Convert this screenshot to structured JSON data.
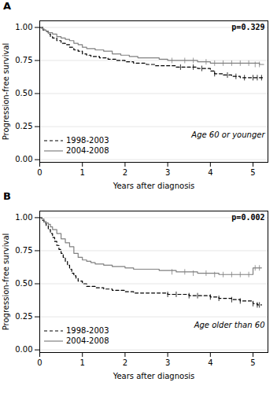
{
  "chart_data": [
    {
      "type": "line",
      "title": "A",
      "annotations": [
        "p=0.329",
        "Age 60 or younger"
      ],
      "xlabel": "Years after diagnosis",
      "ylabel": "Progression-free survival",
      "xlim": [
        0,
        5.35
      ],
      "ylim": [
        -0.02,
        1.05
      ],
      "xticks": [
        0,
        1,
        2,
        3,
        4,
        5
      ],
      "yticks": [
        {
          "value": 0.0,
          "label": "0.00"
        },
        {
          "value": 0.25,
          "label": "0.25"
        },
        {
          "value": 0.5,
          "label": "0.50"
        },
        {
          "value": 0.75,
          "label": "0.75"
        },
        {
          "value": 1.0,
          "label": "1.00"
        }
      ],
      "grid": true,
      "legend": "lower left",
      "series": [
        {
          "name": "1998-2003",
          "color": "#000000",
          "line_style": "dashed",
          "x": [
            0,
            0.08,
            0.15,
            0.2,
            0.25,
            0.3,
            0.4,
            0.5,
            0.6,
            0.7,
            0.8,
            0.9,
            1.0,
            1.1,
            1.2,
            1.4,
            1.6,
            1.8,
            2.0,
            2.2,
            2.5,
            2.7,
            3.0,
            3.2,
            3.5,
            3.7,
            4.0,
            4.1,
            4.3,
            4.5,
            4.7,
            5.0,
            5.15,
            5.25
          ],
          "values": [
            1.0,
            0.98,
            0.97,
            0.95,
            0.93,
            0.92,
            0.9,
            0.88,
            0.87,
            0.85,
            0.83,
            0.82,
            0.8,
            0.79,
            0.78,
            0.77,
            0.76,
            0.75,
            0.74,
            0.73,
            0.72,
            0.71,
            0.71,
            0.7,
            0.7,
            0.69,
            0.67,
            0.65,
            0.64,
            0.63,
            0.62,
            0.62,
            0.62,
            0.62
          ],
          "censored_x": [
            3.3,
            3.6,
            3.8,
            4.1,
            4.4,
            4.6,
            4.8,
            5.0,
            5.1,
            5.2
          ],
          "censored_values": [
            0.7,
            0.7,
            0.69,
            0.65,
            0.64,
            0.63,
            0.62,
            0.62,
            0.62,
            0.62
          ]
        },
        {
          "name": "2004-2008",
          "color": "#808080",
          "line_style": "solid",
          "x": [
            0,
            0.05,
            0.1,
            0.15,
            0.2,
            0.3,
            0.4,
            0.5,
            0.6,
            0.7,
            0.8,
            0.9,
            1.0,
            1.1,
            1.3,
            1.5,
            1.7,
            1.9,
            2.1,
            2.3,
            2.5,
            2.8,
            3.0,
            3.2,
            3.5,
            3.7,
            4.0,
            4.5,
            5.0,
            5.15,
            5.25
          ],
          "values": [
            1.0,
            0.99,
            0.98,
            0.97,
            0.96,
            0.95,
            0.93,
            0.92,
            0.91,
            0.9,
            0.88,
            0.87,
            0.85,
            0.84,
            0.83,
            0.82,
            0.8,
            0.79,
            0.78,
            0.77,
            0.77,
            0.76,
            0.75,
            0.75,
            0.75,
            0.74,
            0.73,
            0.73,
            0.73,
            0.72,
            0.72
          ],
          "censored_x": [
            3.1,
            3.4,
            3.6,
            3.9,
            4.1,
            4.3,
            4.5,
            4.7,
            4.9,
            5.05,
            5.15
          ],
          "censored_values": [
            0.75,
            0.75,
            0.75,
            0.74,
            0.73,
            0.73,
            0.73,
            0.73,
            0.73,
            0.72,
            0.72
          ]
        }
      ]
    },
    {
      "type": "line",
      "title": "B",
      "annotations": [
        "p=0.002",
        "Age older than 60"
      ],
      "xlabel": "Years after diagnosis",
      "ylabel": "Progression-free survival",
      "xlim": [
        0,
        5.35
      ],
      "ylim": [
        -0.02,
        1.05
      ],
      "xticks": [
        0,
        1,
        2,
        3,
        4,
        5
      ],
      "yticks": [
        {
          "value": 0.0,
          "label": "0.00"
        },
        {
          "value": 0.25,
          "label": "0.25"
        },
        {
          "value": 0.5,
          "label": "0.50"
        },
        {
          "value": 0.75,
          "label": "0.75"
        },
        {
          "value": 1.0,
          "label": "1.00"
        }
      ],
      "grid": true,
      "legend": "lower left",
      "series": [
        {
          "name": "1998-2003",
          "color": "#000000",
          "line_style": "dashed",
          "x": [
            0,
            0.05,
            0.1,
            0.15,
            0.2,
            0.25,
            0.3,
            0.35,
            0.4,
            0.45,
            0.5,
            0.55,
            0.6,
            0.65,
            0.7,
            0.75,
            0.8,
            0.85,
            0.9,
            1.0,
            1.1,
            1.3,
            1.5,
            1.7,
            2.0,
            2.2,
            2.5,
            2.8,
            3.0,
            3.2,
            3.5,
            3.7,
            4.0,
            4.2,
            4.5,
            4.7,
            5.0,
            5.1,
            5.2
          ],
          "values": [
            1.0,
            0.98,
            0.96,
            0.94,
            0.91,
            0.88,
            0.85,
            0.82,
            0.79,
            0.76,
            0.73,
            0.7,
            0.67,
            0.64,
            0.61,
            0.58,
            0.56,
            0.54,
            0.52,
            0.5,
            0.48,
            0.47,
            0.46,
            0.45,
            0.44,
            0.43,
            0.43,
            0.43,
            0.42,
            0.42,
            0.41,
            0.41,
            0.4,
            0.39,
            0.38,
            0.37,
            0.35,
            0.34,
            0.34
          ],
          "censored_x": [
            3.0,
            3.2,
            3.5,
            3.7,
            4.0,
            4.2,
            4.5,
            4.7,
            5.0,
            5.1,
            5.15
          ],
          "censored_values": [
            0.42,
            0.42,
            0.41,
            0.41,
            0.4,
            0.39,
            0.38,
            0.37,
            0.35,
            0.34,
            0.34
          ]
        },
        {
          "name": "2004-2008",
          "color": "#808080",
          "line_style": "solid",
          "x": [
            0,
            0.05,
            0.1,
            0.15,
            0.2,
            0.25,
            0.3,
            0.4,
            0.5,
            0.6,
            0.7,
            0.8,
            0.9,
            1.0,
            1.1,
            1.2,
            1.3,
            1.5,
            1.7,
            2.0,
            2.2,
            2.5,
            2.8,
            3.0,
            3.2,
            3.5,
            3.7,
            4.0,
            4.2,
            4.5,
            4.7,
            5.0,
            5.1,
            5.2
          ],
          "values": [
            1.0,
            0.99,
            0.97,
            0.96,
            0.95,
            0.93,
            0.91,
            0.88,
            0.84,
            0.81,
            0.78,
            0.73,
            0.7,
            0.68,
            0.67,
            0.66,
            0.65,
            0.64,
            0.63,
            0.62,
            0.61,
            0.61,
            0.6,
            0.6,
            0.59,
            0.59,
            0.58,
            0.58,
            0.57,
            0.57,
            0.57,
            0.62,
            0.62,
            0.62
          ],
          "censored_x": [
            3.1,
            3.4,
            3.6,
            3.9,
            4.1,
            4.3,
            4.5,
            4.7,
            4.9,
            5.05,
            5.15
          ],
          "censored_values": [
            0.59,
            0.59,
            0.58,
            0.58,
            0.57,
            0.57,
            0.57,
            0.57,
            0.57,
            0.62,
            0.62
          ]
        }
      ]
    }
  ]
}
